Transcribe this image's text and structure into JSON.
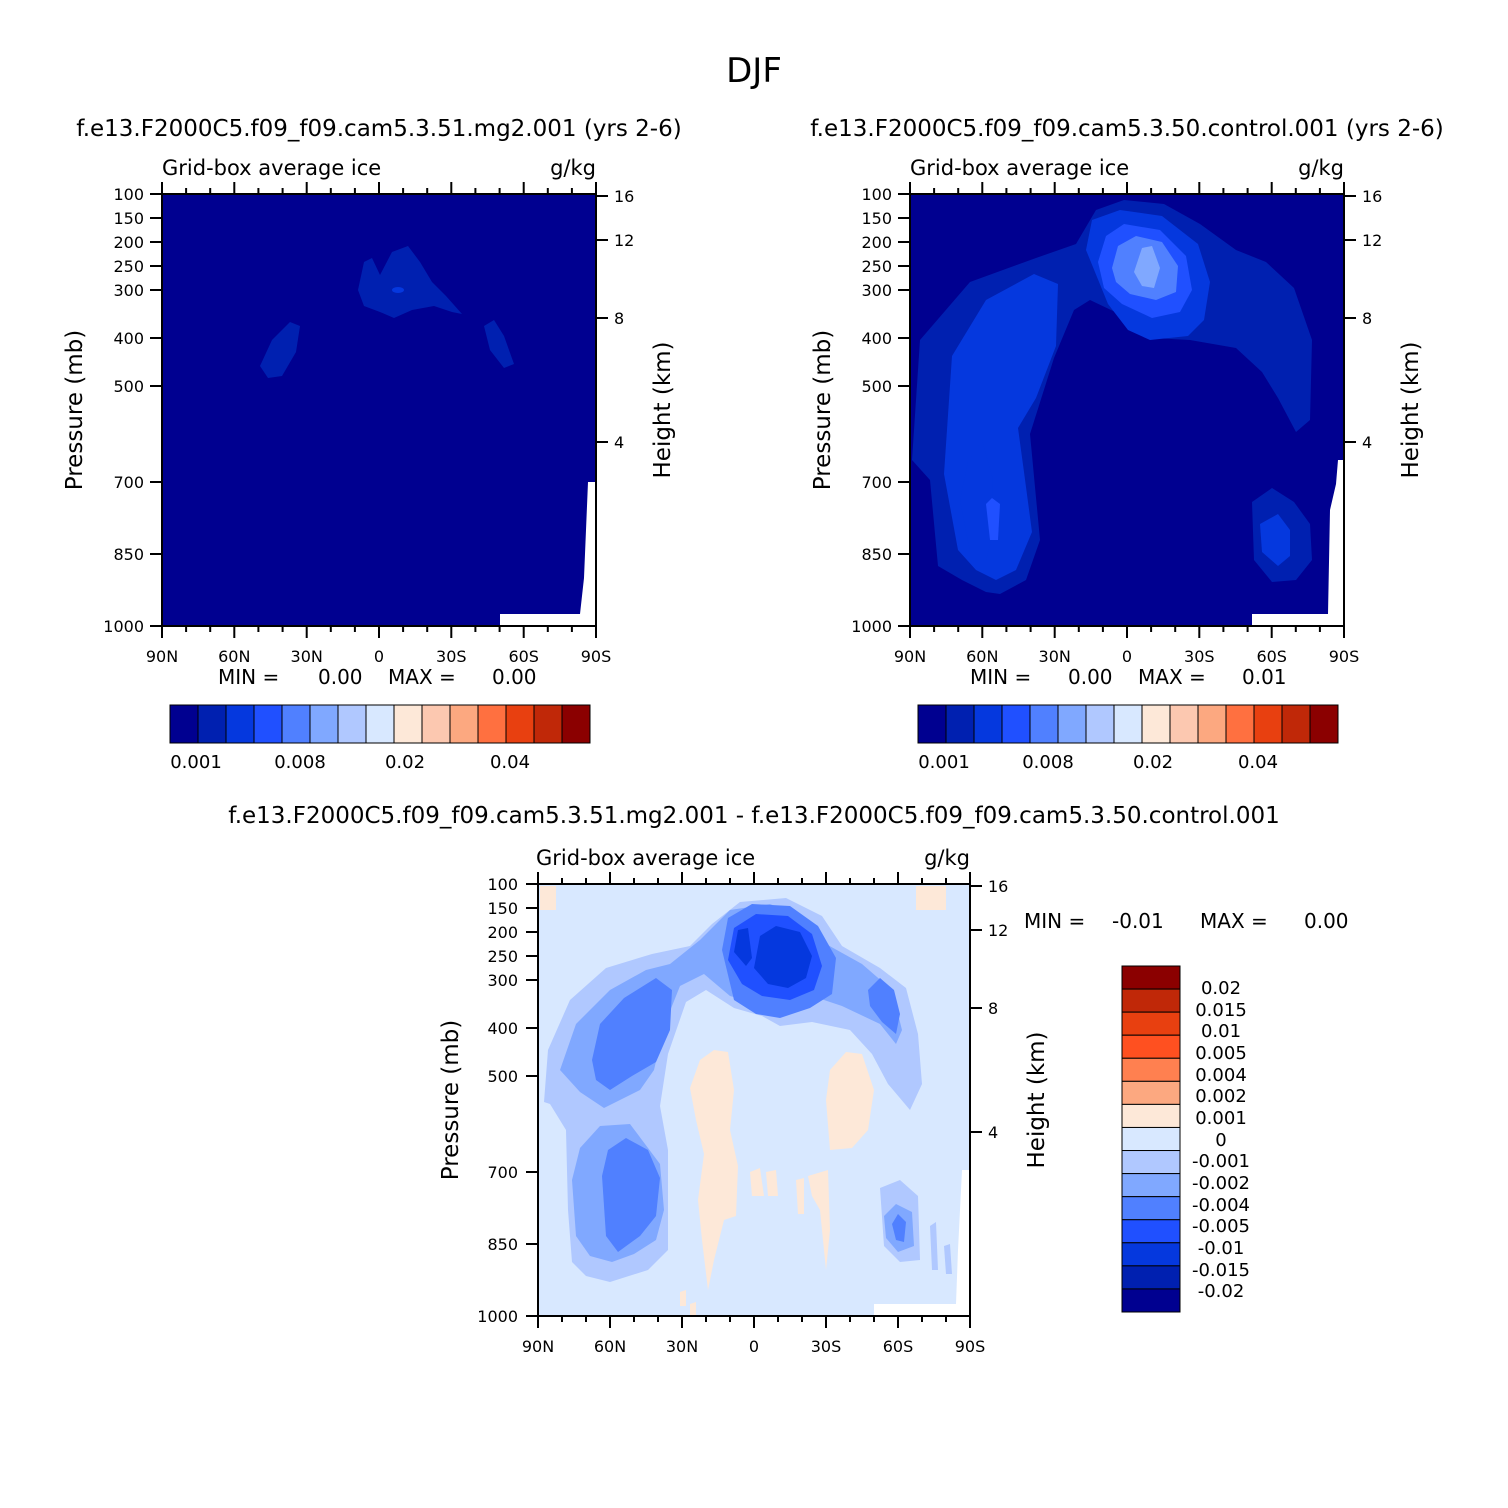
{
  "figure": {
    "title": "DJF"
  },
  "chart_data": [
    {
      "type": "heatmap",
      "id": "top_left",
      "title": "f.e13.F2000C5.f09_f09.cam5.3.51.mg2.001 (yrs 2-6)",
      "subtitle_left": "Grid-box average ice",
      "subtitle_right": "g/kg",
      "xlabel": "",
      "ylabel": "Pressure (mb)",
      "ylabel_right": "Height (km)",
      "x_ticks": [
        "90N",
        "60N",
        "30N",
        "0",
        "30S",
        "60S",
        "90S"
      ],
      "y_ticks": [
        "100",
        "150",
        "200",
        "250",
        "300",
        "400",
        "500",
        "700",
        "850",
        "1000"
      ],
      "y_right_ticks": [
        "16",
        "12",
        "8",
        "4"
      ],
      "y_scale": "log",
      "ylim": [
        1000,
        100
      ],
      "xlim": [
        "90N",
        "90S"
      ],
      "stats": {
        "min_label": "MIN =",
        "min_value": "0.00",
        "max_label": "MAX =",
        "max_value": "0.00"
      },
      "colorbar": {
        "orientation": "horizontal",
        "labels": [
          "0.001",
          "0.008",
          "0.02",
          "0.04"
        ],
        "colors": [
          "#000090",
          "#0020b0",
          "#0538de",
          "#2050ff",
          "#5080ff",
          "#80a8ff",
          "#b0c8ff",
          "#d8e8ff",
          "#fde8d8",
          "#fcc8b0",
          "#fca880",
          "#ff7040",
          "#e84010",
          "#c02808",
          "#8b0000"
        ]
      }
    },
    {
      "type": "heatmap",
      "id": "top_right",
      "title": "f.e13.F2000C5.f09_f09.cam5.3.50.control.001 (yrs 2-6)",
      "subtitle_left": "Grid-box average ice",
      "subtitle_right": "g/kg",
      "xlabel": "",
      "ylabel": "Pressure (mb)",
      "ylabel_right": "Height (km)",
      "x_ticks": [
        "90N",
        "60N",
        "30N",
        "0",
        "30S",
        "60S",
        "90S"
      ],
      "y_ticks": [
        "100",
        "150",
        "200",
        "250",
        "300",
        "400",
        "500",
        "700",
        "850",
        "1000"
      ],
      "y_right_ticks": [
        "16",
        "12",
        "8",
        "4"
      ],
      "y_scale": "log",
      "ylim": [
        1000,
        100
      ],
      "xlim": [
        "90N",
        "90S"
      ],
      "stats": {
        "min_label": "MIN =",
        "min_value": "0.00",
        "max_label": "MAX =",
        "max_value": "0.01"
      },
      "colorbar": {
        "orientation": "horizontal",
        "labels": [
          "0.001",
          "0.008",
          "0.02",
          "0.04"
        ],
        "colors": [
          "#000090",
          "#0020b0",
          "#0538de",
          "#2050ff",
          "#5080ff",
          "#80a8ff",
          "#b0c8ff",
          "#d8e8ff",
          "#fde8d8",
          "#fcc8b0",
          "#fca880",
          "#ff7040",
          "#e84010",
          "#c02808",
          "#8b0000"
        ]
      }
    },
    {
      "type": "heatmap",
      "id": "bottom_diff",
      "title": "f.e13.F2000C5.f09_f09.cam5.3.51.mg2.001 - f.e13.F2000C5.f09_f09.cam5.3.50.control.001",
      "subtitle_left": "Grid-box average ice",
      "subtitle_right": "g/kg",
      "xlabel": "",
      "ylabel": "Pressure (mb)",
      "ylabel_right": "Height (km)",
      "x_ticks": [
        "90N",
        "60N",
        "30N",
        "0",
        "30S",
        "60S",
        "90S"
      ],
      "y_ticks": [
        "100",
        "150",
        "200",
        "250",
        "300",
        "400",
        "500",
        "700",
        "850",
        "1000"
      ],
      "y_right_ticks": [
        "16",
        "12",
        "8",
        "4"
      ],
      "y_scale": "log",
      "ylim": [
        1000,
        100
      ],
      "xlim": [
        "90N",
        "90S"
      ],
      "stats": {
        "min_label": "MIN =",
        "min_value": "-0.01",
        "max_label": "MAX =",
        "max_value": "0.00"
      },
      "colorbar": {
        "orientation": "vertical",
        "labels": [
          "0.02",
          "0.015",
          "0.01",
          "0.005",
          "0.004",
          "0.002",
          "0.001",
          "0",
          "-0.001",
          "-0.002",
          "-0.004",
          "-0.005",
          "-0.01",
          "-0.015",
          "-0.02"
        ],
        "colors": [
          "#8b0000",
          "#c02808",
          "#e84010",
          "#ff5020",
          "#ff8050",
          "#fca880",
          "#fde8d8",
          "#d8e8ff",
          "#b0c8ff",
          "#80a8ff",
          "#5080ff",
          "#2050ff",
          "#0538de",
          "#0020b0",
          "#000090"
        ]
      }
    }
  ]
}
